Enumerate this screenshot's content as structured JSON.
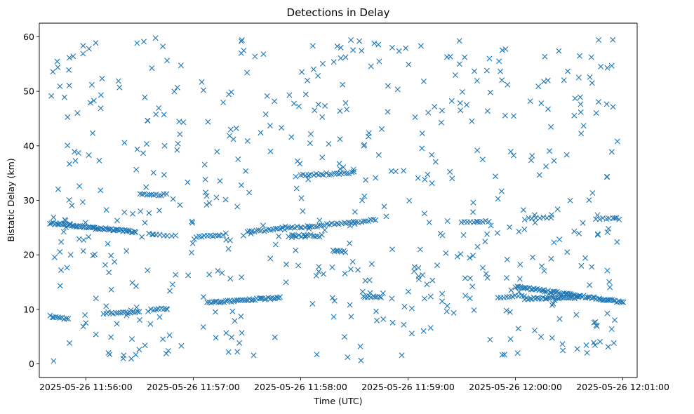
{
  "chart_data": {
    "type": "scatter",
    "title": "Detections in Delay",
    "xlabel": "Time (UTC)",
    "ylabel": "Bistatic Delay (km)",
    "x_axis_type": "datetime",
    "xlim": [
      "2025-05-26 11:55:34",
      "2025-05-26 12:01:08"
    ],
    "ylim": [
      -2.5,
      62.5
    ],
    "x_ticks": [
      "2025-05-26 11:56:00",
      "2025-05-26 11:57:00",
      "2025-05-26 11:58:00",
      "2025-05-26 11:59:00",
      "2025-05-26 12:00:00",
      "2025-05-26 12:01:00"
    ],
    "y_ticks": [
      "0",
      "10",
      "20",
      "30",
      "40",
      "50",
      "60"
    ],
    "marker": "x",
    "marker_color": "#1f77b4",
    "grid": false,
    "legend": false,
    "clusters": [
      {
        "kind": "track",
        "t_start": "2025-05-26 11:55:40",
        "t_end": "2025-05-26 11:56:28",
        "y_start": 25.8,
        "y_end": 24.2,
        "count": 60
      },
      {
        "kind": "track",
        "t_start": "2025-05-26 11:55:40",
        "t_end": "2025-05-26 11:55:50",
        "y_start": 8.7,
        "y_end": 8.3,
        "count": 10
      },
      {
        "kind": "track",
        "t_start": "2025-05-26 11:56:10",
        "t_end": "2025-05-26 11:56:30",
        "y_start": 9.3,
        "y_end": 9.5,
        "count": 16
      },
      {
        "kind": "track",
        "t_start": "2025-05-26 11:56:35",
        "t_end": "2025-05-26 11:56:45",
        "y_start": 9.8,
        "y_end": 10.2,
        "count": 8
      },
      {
        "kind": "track",
        "t_start": "2025-05-26 11:56:30",
        "t_end": "2025-05-26 11:56:45",
        "y_start": 31.2,
        "y_end": 31.0,
        "count": 12
      },
      {
        "kind": "track",
        "t_start": "2025-05-26 11:56:35",
        "t_end": "2025-05-26 11:56:50",
        "y_start": 23.8,
        "y_end": 23.6,
        "count": 8
      },
      {
        "kind": "track",
        "t_start": "2025-05-26 11:57:02",
        "t_end": "2025-05-26 11:57:18",
        "y_start": 23.3,
        "y_end": 23.8,
        "count": 12
      },
      {
        "kind": "track",
        "t_start": "2025-05-26 11:57:08",
        "t_end": "2025-05-26 11:57:48",
        "y_start": 11.2,
        "y_end": 12.2,
        "count": 40
      },
      {
        "kind": "track",
        "t_start": "2025-05-26 11:57:30",
        "t_end": "2025-05-26 11:57:50",
        "y_start": 24.2,
        "y_end": 24.8,
        "count": 16
      },
      {
        "kind": "track",
        "t_start": "2025-05-26 11:57:50",
        "t_end": "2025-05-26 11:58:05",
        "y_start": 25.0,
        "y_end": 25.2,
        "count": 12
      },
      {
        "kind": "track",
        "t_start": "2025-05-26 11:57:55",
        "t_end": "2025-05-26 11:58:12",
        "y_start": 23.5,
        "y_end": 23.5,
        "count": 14
      },
      {
        "kind": "track",
        "t_start": "2025-05-26 11:58:00",
        "t_end": "2025-05-26 11:58:30",
        "y_start": 34.6,
        "y_end": 35.1,
        "count": 22
      },
      {
        "kind": "track",
        "t_start": "2025-05-26 11:58:05",
        "t_end": "2025-05-26 11:58:42",
        "y_start": 25.2,
        "y_end": 26.4,
        "count": 28
      },
      {
        "kind": "track",
        "t_start": "2025-05-26 11:58:18",
        "t_end": "2025-05-26 11:58:25",
        "y_start": 20.8,
        "y_end": 20.5,
        "count": 8
      },
      {
        "kind": "track",
        "t_start": "2025-05-26 11:58:35",
        "t_end": "2025-05-26 11:58:45",
        "y_start": 12.4,
        "y_end": 12.2,
        "count": 10
      },
      {
        "kind": "track",
        "t_start": "2025-05-26 11:59:30",
        "t_end": "2025-05-26 11:59:45",
        "y_start": 26.0,
        "y_end": 26.2,
        "count": 10
      },
      {
        "kind": "track",
        "t_start": "2025-05-26 11:59:50",
        "t_end": "2025-05-26 12:00:05",
        "y_start": 12.2,
        "y_end": 12.5,
        "count": 10
      },
      {
        "kind": "track",
        "t_start": "2025-05-26 12:00:00",
        "t_end": "2025-05-26 12:01:00",
        "y_start": 14.2,
        "y_end": 11.3,
        "count": 70
      },
      {
        "kind": "track",
        "t_start": "2025-05-26 12:00:05",
        "t_end": "2025-05-26 12:00:35",
        "y_start": 12.0,
        "y_end": 12.2,
        "count": 30
      },
      {
        "kind": "track",
        "t_start": "2025-05-26 12:00:05",
        "t_end": "2025-05-26 12:00:20",
        "y_start": 26.6,
        "y_end": 26.8,
        "count": 8
      },
      {
        "kind": "track",
        "t_start": "2025-05-26 12:00:45",
        "t_end": "2025-05-26 12:00:58",
        "y_start": 26.6,
        "y_end": 26.6,
        "count": 8
      },
      {
        "kind": "noise",
        "t_start": "2025-05-26 11:55:40",
        "t_end": "2025-05-26 12:00:58",
        "y_min": 0.5,
        "y_max": 60.0,
        "count": 560
      }
    ]
  }
}
